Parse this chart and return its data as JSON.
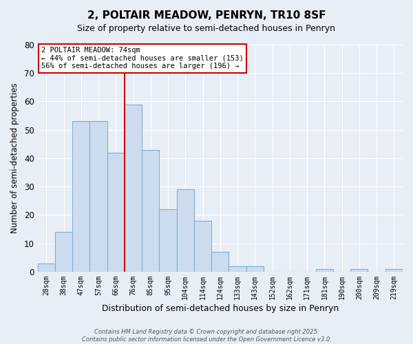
{
  "title": "2, POLTAIR MEADOW, PENRYN, TR10 8SF",
  "subtitle": "Size of property relative to semi-detached houses in Penryn",
  "xlabel": "Distribution of semi-detached houses by size in Penryn",
  "ylabel": "Number of semi-detached properties",
  "bar_labels": [
    "28sqm",
    "38sqm",
    "47sqm",
    "57sqm",
    "66sqm",
    "76sqm",
    "85sqm",
    "95sqm",
    "104sqm",
    "114sqm",
    "124sqm",
    "133sqm",
    "143sqm",
    "152sqm",
    "162sqm",
    "171sqm",
    "181sqm",
    "190sqm",
    "200sqm",
    "209sqm",
    "219sqm"
  ],
  "bar_values": [
    3,
    14,
    53,
    53,
    42,
    59,
    43,
    22,
    29,
    18,
    7,
    2,
    2,
    0,
    0,
    0,
    1,
    0,
    1,
    0,
    1
  ],
  "bar_color": "#ccdcee",
  "bar_edge_color": "#7bafd4",
  "ylim": [
    0,
    80
  ],
  "yticks": [
    0,
    10,
    20,
    30,
    40,
    50,
    60,
    70,
    80
  ],
  "property_line_x": 4.5,
  "property_line_color": "#cc0000",
  "annotation_title": "2 POLTAIR MEADOW: 74sqm",
  "annotation_line1": "← 44% of semi-detached houses are smaller (153)",
  "annotation_line2": "56% of semi-detached houses are larger (196) →",
  "annotation_box_facecolor": "#ffffff",
  "annotation_box_edgecolor": "#cc0000",
  "footer_line1": "Contains HM Land Registry data © Crown copyright and database right 2025.",
  "footer_line2": "Contains public sector information licensed under the Open Government Licence v3.0.",
  "bg_color": "#e8eef6",
  "plot_bg_color": "#e8eef6",
  "grid_color": "#ffffff",
  "title_fontsize": 11,
  "subtitle_fontsize": 9
}
